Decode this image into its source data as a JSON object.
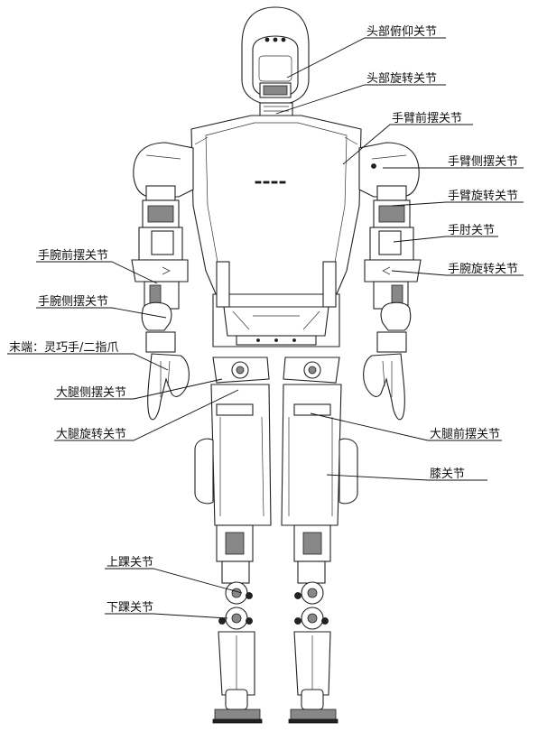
{
  "labels": {
    "head_pitch": "头部俯仰关节",
    "head_rotation": "头部旋转关节",
    "arm_forward": "手臂前摆关节",
    "arm_side": "手臂侧摆关节",
    "arm_rotation": "手臂旋转关节",
    "elbow": "手肘关节",
    "wrist_rotation": "手腕旋转关节",
    "wrist_forward": "手腕前摆关节",
    "wrist_side": "手腕侧摆关节",
    "end_effector": "末端：灵巧手/二指爪",
    "thigh_side": "大腿侧摆关节",
    "thigh_rotation": "大腿旋转关节",
    "thigh_forward": "大腿前摆关节",
    "knee": "膝关节",
    "upper_ankle": "上踝关节",
    "lower_ankle": "下踝关节"
  }
}
